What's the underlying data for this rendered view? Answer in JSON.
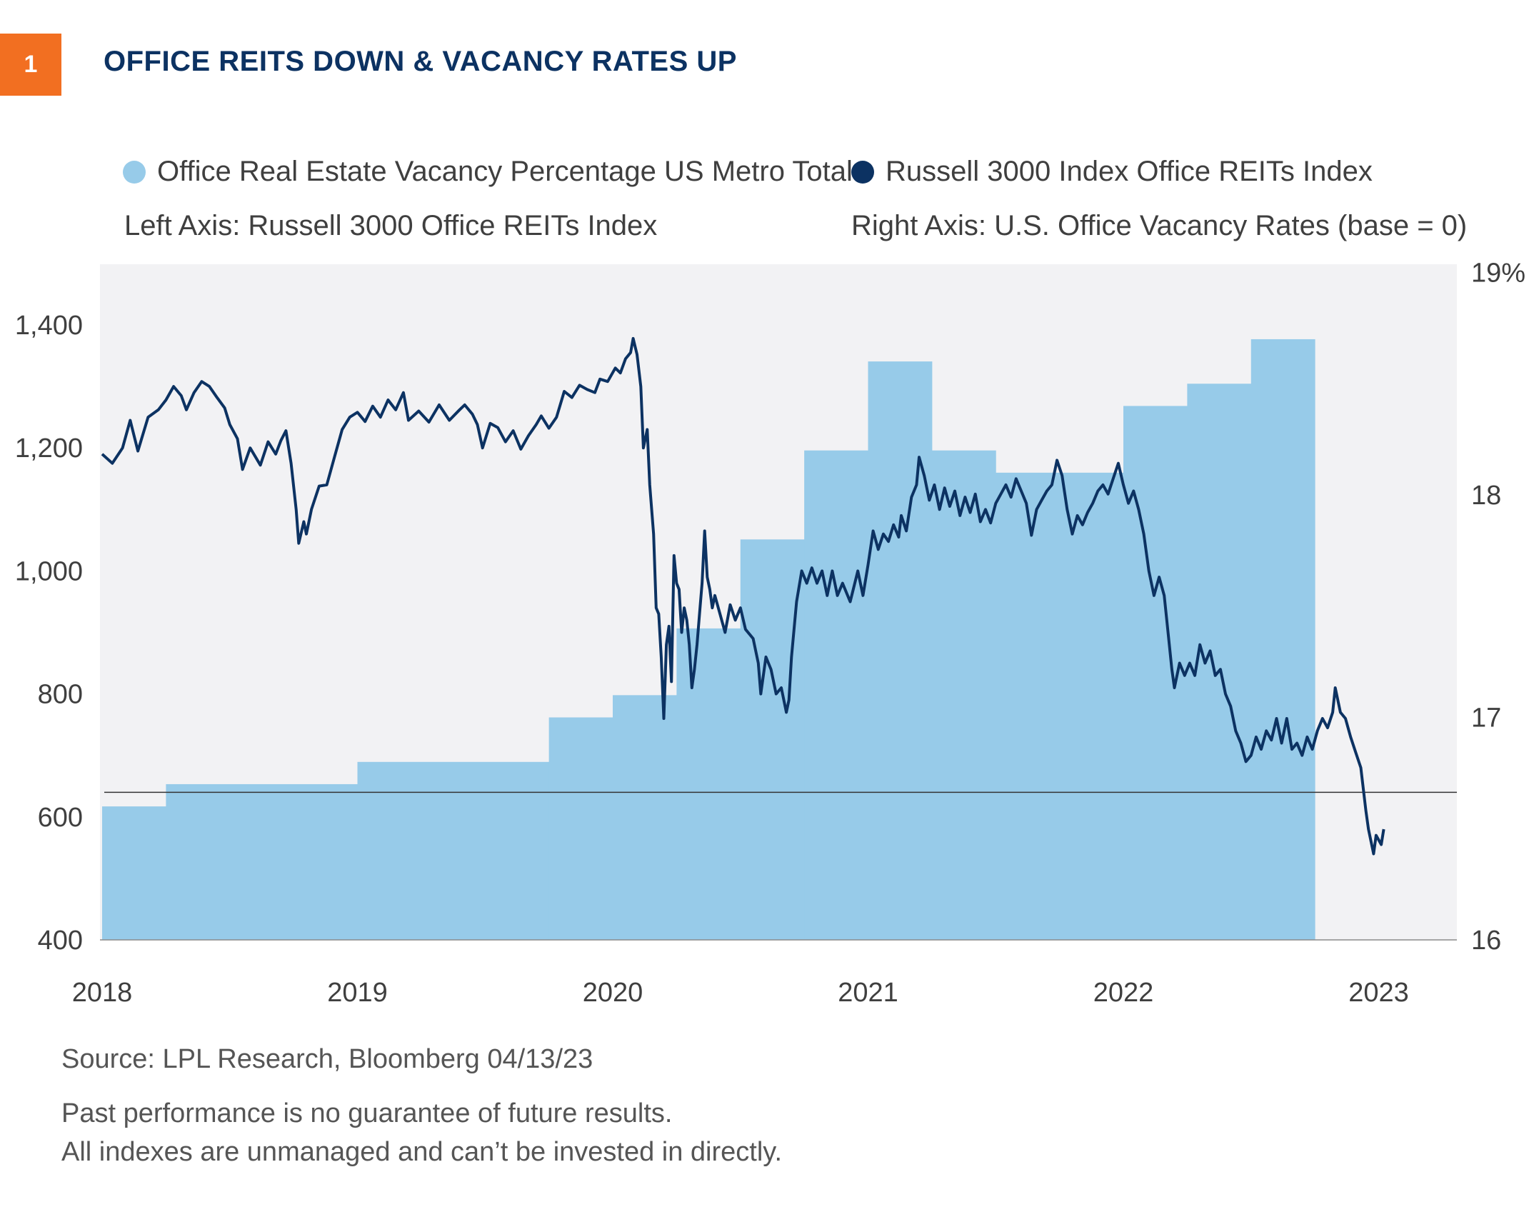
{
  "header": {
    "figure_number": "1",
    "title": "OFFICE REITS DOWN & VACANCY RATES UP"
  },
  "legend": {
    "vacancy_label": "Office Real Estate Vacancy Percentage US Metro Total",
    "reits_label": "Russell 3000 Index Office REITs Index",
    "left_axis_note": "Left Axis: Russell 3000 Office REITs Index",
    "right_axis_note": "Right Axis: U.S. Office Vacancy Rates (base = 0)"
  },
  "footer": {
    "source": "Source: LPL Research, Bloomberg  04/13/23",
    "disclaimer_1": "Past performance is no guarantee of future results.",
    "disclaimer_2": "All indexes are unmanaged and can’t be invested in directly."
  },
  "colors": {
    "vacancy_fill": "#97cbe9",
    "reits_line": "#0c3262",
    "plot_background": "#f2f2f4",
    "accent": "#f26f21"
  },
  "chart_data": {
    "type": "area+line",
    "x_axis": {
      "ticks": [
        "2018",
        "2019",
        "2020",
        "2021",
        "2022",
        "2023"
      ],
      "range": [
        2018.0,
        2023.25
      ]
    },
    "left_axis": {
      "ticks": [
        "400",
        "600",
        "800",
        "1,000",
        "1,200",
        "1,400"
      ],
      "range": [
        400,
        1500
      ]
    },
    "right_axis": {
      "ticks": [
        "16",
        "17",
        "18",
        "19%"
      ],
      "range": [
        16,
        19
      ]
    },
    "reference_line_left_value": 640,
    "series": [
      {
        "name": "Office Real Estate Vacancy Percentage US Metro Total",
        "axis": "right",
        "kind": "step-area",
        "steps": [
          {
            "start": 2018.0,
            "end": 2018.25,
            "value": 16.6
          },
          {
            "start": 2018.25,
            "end": 2019.0,
            "value": 16.7
          },
          {
            "start": 2019.0,
            "end": 2019.75,
            "value": 16.8
          },
          {
            "start": 2019.75,
            "end": 2020.0,
            "value": 17.0
          },
          {
            "start": 2020.0,
            "end": 2020.25,
            "value": 17.1
          },
          {
            "start": 2020.25,
            "end": 2020.5,
            "value": 17.4
          },
          {
            "start": 2020.5,
            "end": 2020.75,
            "value": 17.8
          },
          {
            "start": 2020.75,
            "end": 2021.0,
            "value": 18.2
          },
          {
            "start": 2021.0,
            "end": 2021.25,
            "value": 18.6
          },
          {
            "start": 2021.25,
            "end": 2021.5,
            "value": 18.2
          },
          {
            "start": 2021.5,
            "end": 2022.0,
            "value": 18.1
          },
          {
            "start": 2022.0,
            "end": 2022.25,
            "value": 18.4
          },
          {
            "start": 2022.25,
            "end": 2022.5,
            "value": 18.5
          },
          {
            "start": 2022.5,
            "end": 2022.75,
            "value": 18.7
          }
        ]
      },
      {
        "name": "Russell 3000 Index Office REITs Index",
        "axis": "left",
        "kind": "line",
        "points": [
          [
            2018.0,
            1190
          ],
          [
            2018.04,
            1175
          ],
          [
            2018.08,
            1200
          ],
          [
            2018.11,
            1245
          ],
          [
            2018.14,
            1195
          ],
          [
            2018.18,
            1250
          ],
          [
            2018.22,
            1262
          ],
          [
            2018.25,
            1278
          ],
          [
            2018.28,
            1300
          ],
          [
            2018.31,
            1285
          ],
          [
            2018.33,
            1262
          ],
          [
            2018.36,
            1290
          ],
          [
            2018.39,
            1308
          ],
          [
            2018.42,
            1300
          ],
          [
            2018.45,
            1282
          ],
          [
            2018.48,
            1265
          ],
          [
            2018.5,
            1238
          ],
          [
            2018.53,
            1215
          ],
          [
            2018.55,
            1165
          ],
          [
            2018.58,
            1200
          ],
          [
            2018.62,
            1172
          ],
          [
            2018.65,
            1210
          ],
          [
            2018.68,
            1190
          ],
          [
            2018.7,
            1212
          ],
          [
            2018.72,
            1228
          ],
          [
            2018.74,
            1175
          ],
          [
            2018.76,
            1100
          ],
          [
            2018.77,
            1045
          ],
          [
            2018.79,
            1080
          ],
          [
            2018.8,
            1060
          ],
          [
            2018.82,
            1100
          ],
          [
            2018.85,
            1138
          ],
          [
            2018.88,
            1140
          ],
          [
            2018.91,
            1185
          ],
          [
            2018.94,
            1230
          ],
          [
            2018.97,
            1250
          ],
          [
            2019.0,
            1258
          ],
          [
            2019.03,
            1243
          ],
          [
            2019.06,
            1268
          ],
          [
            2019.09,
            1250
          ],
          [
            2019.12,
            1278
          ],
          [
            2019.15,
            1262
          ],
          [
            2019.18,
            1290
          ],
          [
            2019.2,
            1245
          ],
          [
            2019.24,
            1260
          ],
          [
            2019.28,
            1242
          ],
          [
            2019.32,
            1270
          ],
          [
            2019.36,
            1245
          ],
          [
            2019.4,
            1262
          ],
          [
            2019.42,
            1270
          ],
          [
            2019.45,
            1255
          ],
          [
            2019.47,
            1238
          ],
          [
            2019.49,
            1200
          ],
          [
            2019.52,
            1240
          ],
          [
            2019.55,
            1233
          ],
          [
            2019.58,
            1210
          ],
          [
            2019.61,
            1228
          ],
          [
            2019.64,
            1198
          ],
          [
            2019.67,
            1220
          ],
          [
            2019.7,
            1238
          ],
          [
            2019.72,
            1252
          ],
          [
            2019.75,
            1232
          ],
          [
            2019.78,
            1250
          ],
          [
            2019.81,
            1292
          ],
          [
            2019.84,
            1282
          ],
          [
            2019.87,
            1302
          ],
          [
            2019.9,
            1295
          ],
          [
            2019.93,
            1290
          ],
          [
            2019.95,
            1312
          ],
          [
            2019.98,
            1308
          ],
          [
            2020.01,
            1330
          ],
          [
            2020.03,
            1322
          ],
          [
            2020.05,
            1345
          ],
          [
            2020.07,
            1355
          ],
          [
            2020.08,
            1378
          ],
          [
            2020.095,
            1352
          ],
          [
            2020.11,
            1300
          ],
          [
            2020.12,
            1200
          ],
          [
            2020.135,
            1230
          ],
          [
            2020.145,
            1140
          ],
          [
            2020.16,
            1060
          ],
          [
            2020.17,
            940
          ],
          [
            2020.18,
            930
          ],
          [
            2020.19,
            860
          ],
          [
            2020.2,
            760
          ],
          [
            2020.21,
            880
          ],
          [
            2020.22,
            910
          ],
          [
            2020.23,
            820
          ],
          [
            2020.24,
            1025
          ],
          [
            2020.25,
            980
          ],
          [
            2020.26,
            970
          ],
          [
            2020.27,
            900
          ],
          [
            2020.28,
            940
          ],
          [
            2020.29,
            920
          ],
          [
            2020.3,
            880
          ],
          [
            2020.31,
            810
          ],
          [
            2020.32,
            840
          ],
          [
            2020.33,
            880
          ],
          [
            2020.34,
            930
          ],
          [
            2020.35,
            980
          ],
          [
            2020.36,
            1065
          ],
          [
            2020.37,
            990
          ],
          [
            2020.38,
            970
          ],
          [
            2020.39,
            940
          ],
          [
            2020.4,
            960
          ],
          [
            2020.42,
            930
          ],
          [
            2020.44,
            900
          ],
          [
            2020.46,
            945
          ],
          [
            2020.48,
            920
          ],
          [
            2020.5,
            940
          ],
          [
            2020.52,
            905
          ],
          [
            2020.55,
            890
          ],
          [
            2020.57,
            850
          ],
          [
            2020.58,
            800
          ],
          [
            2020.6,
            860
          ],
          [
            2020.62,
            840
          ],
          [
            2020.64,
            800
          ],
          [
            2020.66,
            810
          ],
          [
            2020.68,
            770
          ],
          [
            2020.69,
            790
          ],
          [
            2020.7,
            860
          ],
          [
            2020.72,
            950
          ],
          [
            2020.74,
            1000
          ],
          [
            2020.76,
            980
          ],
          [
            2020.78,
            1005
          ],
          [
            2020.8,
            980
          ],
          [
            2020.82,
            1000
          ],
          [
            2020.84,
            960
          ],
          [
            2020.86,
            1000
          ],
          [
            2020.88,
            960
          ],
          [
            2020.9,
            980
          ],
          [
            2020.93,
            950
          ],
          [
            2020.96,
            1000
          ],
          [
            2020.98,
            960
          ],
          [
            2021.0,
            1010
          ],
          [
            2021.02,
            1065
          ],
          [
            2021.04,
            1035
          ],
          [
            2021.06,
            1060
          ],
          [
            2021.08,
            1048
          ],
          [
            2021.1,
            1075
          ],
          [
            2021.12,
            1055
          ],
          [
            2021.13,
            1090
          ],
          [
            2021.15,
            1065
          ],
          [
            2021.17,
            1120
          ],
          [
            2021.19,
            1140
          ],
          [
            2021.2,
            1185
          ],
          [
            2021.22,
            1155
          ],
          [
            2021.24,
            1115
          ],
          [
            2021.26,
            1140
          ],
          [
            2021.28,
            1100
          ],
          [
            2021.3,
            1135
          ],
          [
            2021.32,
            1105
          ],
          [
            2021.34,
            1130
          ],
          [
            2021.36,
            1090
          ],
          [
            2021.38,
            1120
          ],
          [
            2021.4,
            1095
          ],
          [
            2021.42,
            1125
          ],
          [
            2021.44,
            1080
          ],
          [
            2021.46,
            1100
          ],
          [
            2021.48,
            1078
          ],
          [
            2021.5,
            1110
          ],
          [
            2021.52,
            1125
          ],
          [
            2021.54,
            1140
          ],
          [
            2021.56,
            1120
          ],
          [
            2021.58,
            1150
          ],
          [
            2021.6,
            1130
          ],
          [
            2021.62,
            1110
          ],
          [
            2021.64,
            1058
          ],
          [
            2021.66,
            1100
          ],
          [
            2021.68,
            1115
          ],
          [
            2021.7,
            1130
          ],
          [
            2021.72,
            1140
          ],
          [
            2021.74,
            1180
          ],
          [
            2021.76,
            1155
          ],
          [
            2021.78,
            1100
          ],
          [
            2021.8,
            1060
          ],
          [
            2021.82,
            1090
          ],
          [
            2021.84,
            1075
          ],
          [
            2021.86,
            1095
          ],
          [
            2021.88,
            1110
          ],
          [
            2021.9,
            1130
          ],
          [
            2021.92,
            1140
          ],
          [
            2021.94,
            1125
          ],
          [
            2021.96,
            1150
          ],
          [
            2021.98,
            1175
          ],
          [
            2022.0,
            1140
          ],
          [
            2022.02,
            1110
          ],
          [
            2022.04,
            1130
          ],
          [
            2022.06,
            1100
          ],
          [
            2022.08,
            1060
          ],
          [
            2022.1,
            1000
          ],
          [
            2022.12,
            960
          ],
          [
            2022.14,
            990
          ],
          [
            2022.16,
            960
          ],
          [
            2022.17,
            920
          ],
          [
            2022.19,
            840
          ],
          [
            2022.2,
            810
          ],
          [
            2022.22,
            850
          ],
          [
            2022.24,
            830
          ],
          [
            2022.26,
            850
          ],
          [
            2022.28,
            830
          ],
          [
            2022.3,
            880
          ],
          [
            2022.32,
            850
          ],
          [
            2022.34,
            870
          ],
          [
            2022.36,
            830
          ],
          [
            2022.38,
            840
          ],
          [
            2022.4,
            800
          ],
          [
            2022.42,
            780
          ],
          [
            2022.44,
            740
          ],
          [
            2022.46,
            720
          ],
          [
            2022.48,
            690
          ],
          [
            2022.5,
            700
          ],
          [
            2022.52,
            730
          ],
          [
            2022.54,
            710
          ],
          [
            2022.56,
            740
          ],
          [
            2022.58,
            725
          ],
          [
            2022.6,
            760
          ],
          [
            2022.62,
            720
          ],
          [
            2022.64,
            760
          ],
          [
            2022.66,
            710
          ],
          [
            2022.68,
            720
          ],
          [
            2022.7,
            700
          ],
          [
            2022.72,
            730
          ],
          [
            2022.74,
            710
          ],
          [
            2022.76,
            740
          ],
          [
            2022.78,
            760
          ],
          [
            2022.8,
            745
          ],
          [
            2022.82,
            770
          ],
          [
            2022.83,
            810
          ],
          [
            2022.85,
            770
          ],
          [
            2022.87,
            760
          ],
          [
            2022.89,
            730
          ],
          [
            2022.91,
            705
          ],
          [
            2022.93,
            680
          ],
          [
            2022.95,
            610
          ],
          [
            2022.96,
            580
          ],
          [
            2022.97,
            560
          ],
          [
            2022.98,
            540
          ],
          [
            2022.99,
            570
          ],
          [
            2023.01,
            555
          ],
          [
            2023.02,
            580
          ]
        ]
      }
    ]
  }
}
